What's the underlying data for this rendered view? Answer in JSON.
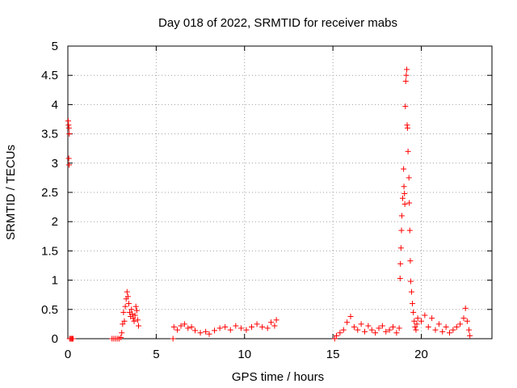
{
  "chart_data": {
    "type": "scatter",
    "title": "Day 018 of 2022, SRMTID for receiver mabs",
    "xlabel": "GPS time / hours",
    "ylabel": "SRMTID / TECUs",
    "xlim": [
      0,
      24
    ],
    "ylim": [
      0,
      5
    ],
    "xticks": [
      0,
      5,
      10,
      15,
      20
    ],
    "xtick_labels": [
      "0",
      "5",
      "10",
      "15",
      "20"
    ],
    "yticks": [
      0,
      0.5,
      1,
      1.5,
      2,
      2.5,
      3,
      3.5,
      4,
      4.5,
      5
    ],
    "ytick_labels": [
      "0",
      "0.5",
      "1",
      "1.5",
      "2",
      "2.5",
      "3",
      "3.5",
      "4",
      "4.5",
      "5"
    ],
    "grid": true,
    "marker": "+",
    "color": "#ff0000",
    "series": [
      {
        "name": "SRMTID",
        "points": [
          [
            0.02,
            3.72
          ],
          [
            0.04,
            3.65
          ],
          [
            0.06,
            3.6
          ],
          [
            0.08,
            3.5
          ],
          [
            0.05,
            3.08
          ],
          [
            0.07,
            2.97
          ],
          [
            0.1,
            0.0
          ],
          [
            0.15,
            0.0
          ],
          [
            0.2,
            0.0
          ],
          [
            0.25,
            0.0
          ],
          [
            0.3,
            0.0
          ],
          [
            2.5,
            0.0
          ],
          [
            2.6,
            0.0
          ],
          [
            2.7,
            0.0
          ],
          [
            2.8,
            0.0
          ],
          [
            2.9,
            0.0
          ],
          [
            3.0,
            0.02
          ],
          [
            3.05,
            0.1
          ],
          [
            3.1,
            0.25
          ],
          [
            3.15,
            0.45
          ],
          [
            3.2,
            0.3
          ],
          [
            3.25,
            0.55
          ],
          [
            3.3,
            0.68
          ],
          [
            3.35,
            0.8
          ],
          [
            3.4,
            0.72
          ],
          [
            3.45,
            0.6
          ],
          [
            3.5,
            0.45
          ],
          [
            3.55,
            0.38
          ],
          [
            3.6,
            0.5
          ],
          [
            3.65,
            0.42
          ],
          [
            3.7,
            0.35
          ],
          [
            3.75,
            0.3
          ],
          [
            3.8,
            0.4
          ],
          [
            3.85,
            0.55
          ],
          [
            3.9,
            0.48
          ],
          [
            3.95,
            0.32
          ],
          [
            4.0,
            0.22
          ],
          [
            5.95,
            0.0
          ],
          [
            6.0,
            0.2
          ],
          [
            6.2,
            0.15
          ],
          [
            6.4,
            0.22
          ],
          [
            6.6,
            0.25
          ],
          [
            6.8,
            0.18
          ],
          [
            7.0,
            0.2
          ],
          [
            7.2,
            0.14
          ],
          [
            7.5,
            0.1
          ],
          [
            7.8,
            0.12
          ],
          [
            8.0,
            0.08
          ],
          [
            8.3,
            0.14
          ],
          [
            8.6,
            0.18
          ],
          [
            8.9,
            0.2
          ],
          [
            9.2,
            0.15
          ],
          [
            9.5,
            0.22
          ],
          [
            9.8,
            0.18
          ],
          [
            10.1,
            0.15
          ],
          [
            10.4,
            0.2
          ],
          [
            10.7,
            0.25
          ],
          [
            11.0,
            0.2
          ],
          [
            11.3,
            0.18
          ],
          [
            11.5,
            0.28
          ],
          [
            11.7,
            0.22
          ],
          [
            11.8,
            0.32
          ],
          [
            15.1,
            0.0
          ],
          [
            15.2,
            0.05
          ],
          [
            15.4,
            0.1
          ],
          [
            15.6,
            0.15
          ],
          [
            15.8,
            0.28
          ],
          [
            16.0,
            0.38
          ],
          [
            16.2,
            0.2
          ],
          [
            16.4,
            0.15
          ],
          [
            16.6,
            0.25
          ],
          [
            16.8,
            0.12
          ],
          [
            17.0,
            0.22
          ],
          [
            17.2,
            0.15
          ],
          [
            17.4,
            0.1
          ],
          [
            17.6,
            0.18
          ],
          [
            17.8,
            0.22
          ],
          [
            18.0,
            0.12
          ],
          [
            18.2,
            0.15
          ],
          [
            18.4,
            0.2
          ],
          [
            18.6,
            0.1
          ],
          [
            18.75,
            0.18
          ],
          [
            18.8,
            1.03
          ],
          [
            18.82,
            1.28
          ],
          [
            18.85,
            1.55
          ],
          [
            18.88,
            1.85
          ],
          [
            18.9,
            2.1
          ],
          [
            18.95,
            2.4
          ],
          [
            19.0,
            2.9
          ],
          [
            19.02,
            2.6
          ],
          [
            19.05,
            2.48
          ],
          [
            19.07,
            2.3
          ],
          [
            19.1,
            3.97
          ],
          [
            19.12,
            4.4
          ],
          [
            19.15,
            4.5
          ],
          [
            19.18,
            4.6
          ],
          [
            19.2,
            3.65
          ],
          [
            19.22,
            3.6
          ],
          [
            19.25,
            3.2
          ],
          [
            19.3,
            2.75
          ],
          [
            19.32,
            2.32
          ],
          [
            19.35,
            1.85
          ],
          [
            19.38,
            1.33
          ],
          [
            19.4,
            0.98
          ],
          [
            19.45,
            0.8
          ],
          [
            19.5,
            0.6
          ],
          [
            19.55,
            0.45
          ],
          [
            19.6,
            0.3
          ],
          [
            19.65,
            0.2
          ],
          [
            19.7,
            0.15
          ],
          [
            19.75,
            0.25
          ],
          [
            19.8,
            0.35
          ],
          [
            20.0,
            0.3
          ],
          [
            20.2,
            0.4
          ],
          [
            20.4,
            0.2
          ],
          [
            20.6,
            0.35
          ],
          [
            20.8,
            0.15
          ],
          [
            21.0,
            0.25
          ],
          [
            21.2,
            0.12
          ],
          [
            21.4,
            0.2
          ],
          [
            21.6,
            0.1
          ],
          [
            21.8,
            0.15
          ],
          [
            22.0,
            0.2
          ],
          [
            22.2,
            0.25
          ],
          [
            22.4,
            0.35
          ],
          [
            22.5,
            0.52
          ],
          [
            22.6,
            0.3
          ],
          [
            22.7,
            0.15
          ],
          [
            22.75,
            0.05
          ]
        ]
      }
    ]
  }
}
